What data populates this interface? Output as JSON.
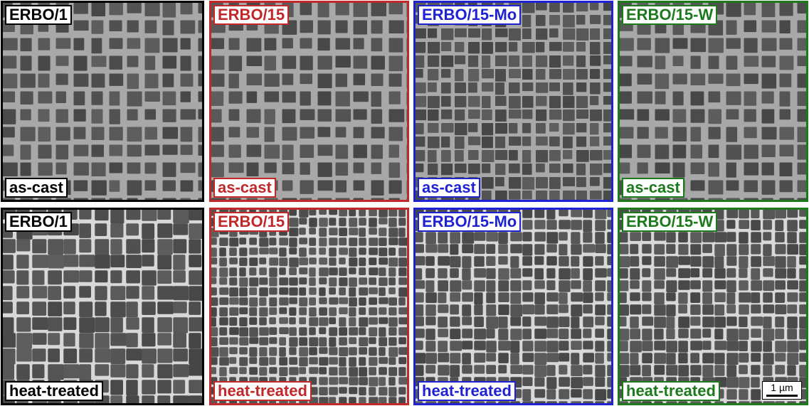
{
  "panels": [
    {
      "alloy": "ERBO/1",
      "condition": "as-cast",
      "color": "#000000"
    },
    {
      "alloy": "ERBO/15",
      "condition": "as-cast",
      "color": "#c0282a"
    },
    {
      "alloy": "ERBO/15-Mo",
      "condition": "as-cast",
      "color": "#1f22d0"
    },
    {
      "alloy": "ERBO/15-W",
      "condition": "as-cast",
      "color": "#1c7a1c"
    },
    {
      "alloy": "ERBO/1",
      "condition": "heat-treated",
      "color": "#000000"
    },
    {
      "alloy": "ERBO/15",
      "condition": "heat-treated",
      "color": "#c0282a"
    },
    {
      "alloy": "ERBO/15-Mo",
      "condition": "heat-treated",
      "color": "#1f22d0"
    },
    {
      "alloy": "ERBO/15-W",
      "condition": "heat-treated",
      "color": "#1c7a1c"
    }
  ],
  "scale_bar": {
    "label": "1 µm"
  }
}
